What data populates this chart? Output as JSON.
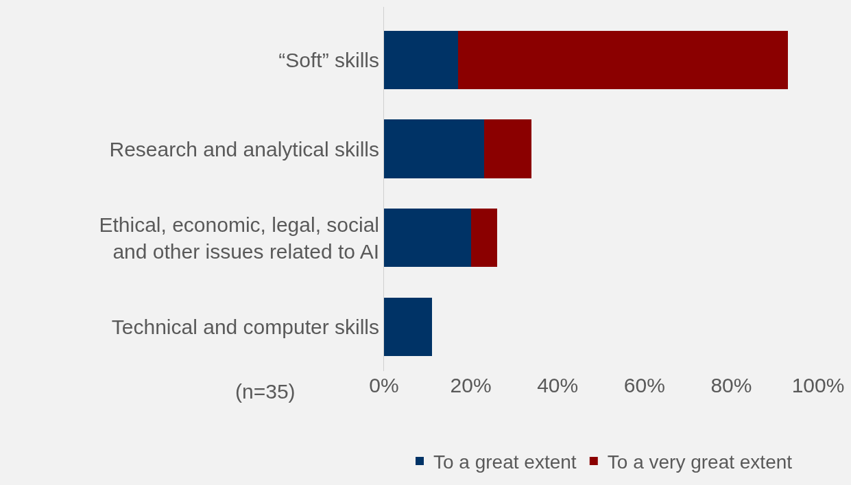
{
  "chart_data": {
    "type": "bar",
    "orientation": "horizontal",
    "stacked": true,
    "categories": [
      "“Soft” skills",
      "Research and analytical skills",
      "Ethical, economic, legal, social and other issues related to AI",
      "Technical and computer skills"
    ],
    "series": [
      {
        "name": "To a great extent",
        "color": "#003366",
        "values": [
          17,
          23,
          20,
          11
        ]
      },
      {
        "name": "To a very great extent",
        "color": "#8b0000",
        "values": [
          76,
          11,
          6,
          0
        ]
      }
    ],
    "xlim": [
      0,
      100
    ],
    "xticks": [
      {
        "value": 0,
        "label": "0%"
      },
      {
        "value": 20,
        "label": "20%"
      },
      {
        "value": 40,
        "label": "40%"
      },
      {
        "value": 60,
        "label": "60%"
      },
      {
        "value": 80,
        "label": "80%"
      },
      {
        "value": 100,
        "label": "100%"
      }
    ],
    "annotations": [
      "(n=35)"
    ],
    "legend": "bottom",
    "grid": false
  }
}
